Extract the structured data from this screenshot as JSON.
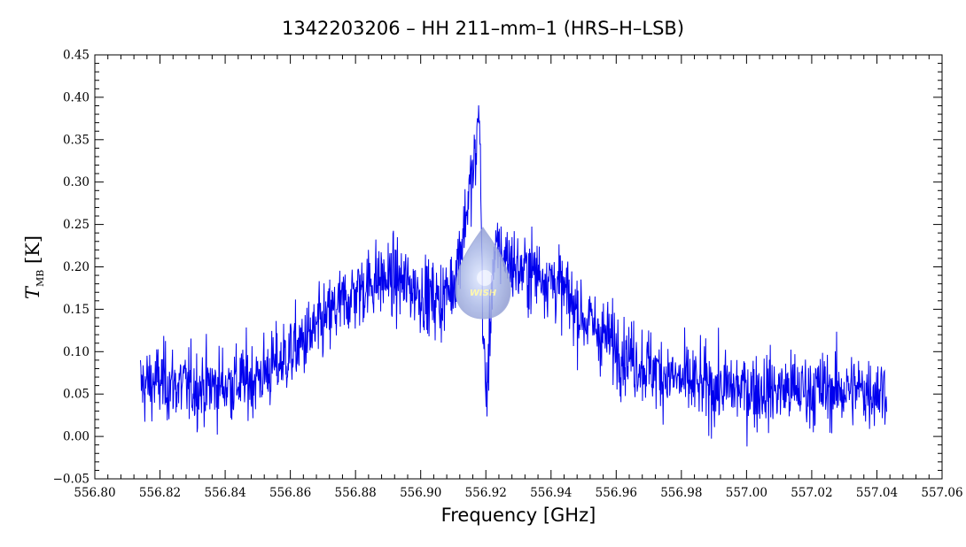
{
  "chart_data": {
    "type": "line",
    "title": "1342203206 – HH 211–mm–1 (HRS–H–LSB)",
    "xlabel": "Frequency [GHz]",
    "ylabel": {
      "main": "T",
      "sub": "MB",
      "unit": " [K]"
    },
    "xlim": [
      556.8,
      557.06
    ],
    "ylim": [
      -0.05,
      0.45
    ],
    "x_ticks": [
      "556.80",
      "556.82",
      "556.84",
      "556.86",
      "556.88",
      "556.90",
      "556.92",
      "556.94",
      "556.96",
      "556.98",
      "557.00",
      "557.02",
      "557.04",
      "557.06"
    ],
    "y_ticks": [
      "−0.05",
      "0.00",
      "0.05",
      "0.10",
      "0.15",
      "0.20",
      "0.25",
      "0.30",
      "0.35",
      "0.40",
      "0.45"
    ],
    "grid": false,
    "series": [
      {
        "color": "#0000ee",
        "x": [
          556.814,
          556.82,
          556.826,
          556.832,
          556.838,
          556.844,
          556.85,
          556.856,
          556.862,
          556.868,
          556.874,
          556.88,
          556.886,
          556.892,
          556.898,
          556.902,
          556.906,
          556.91,
          556.913,
          556.915,
          556.917,
          556.918,
          556.919,
          556.92,
          556.921,
          556.922,
          556.924,
          556.927,
          556.93,
          556.934,
          556.938,
          556.942,
          556.946,
          556.95,
          556.956,
          556.962,
          556.968,
          556.974,
          556.98,
          556.986,
          556.992,
          556.998,
          557.004,
          557.01,
          557.016,
          557.022,
          557.028,
          557.034,
          557.04,
          557.043
        ],
        "y": [
          0.06,
          0.065,
          0.06,
          0.058,
          0.06,
          0.064,
          0.07,
          0.085,
          0.105,
          0.125,
          0.15,
          0.17,
          0.185,
          0.185,
          0.175,
          0.165,
          0.16,
          0.18,
          0.24,
          0.29,
          0.33,
          0.4,
          0.15,
          0.04,
          0.1,
          0.2,
          0.22,
          0.21,
          0.195,
          0.195,
          0.19,
          0.18,
          0.16,
          0.14,
          0.12,
          0.1,
          0.085,
          0.075,
          0.065,
          0.06,
          0.057,
          0.057,
          0.055,
          0.055,
          0.055,
          0.055,
          0.055,
          0.055,
          0.055,
          0.055
        ],
        "noise_rms": 0.025
      }
    ]
  },
  "logo": {
    "text": "WISH"
  }
}
